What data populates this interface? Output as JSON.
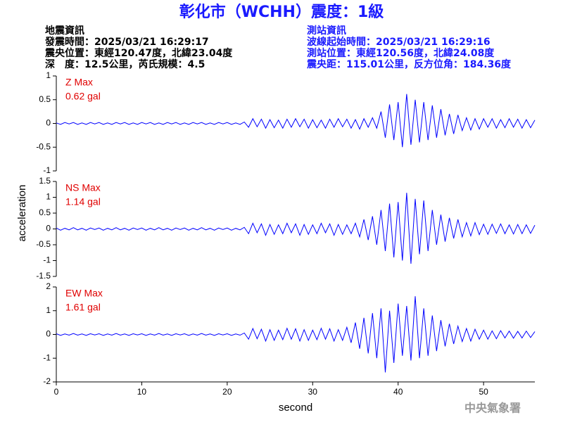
{
  "header": {
    "title": "彰化市（WCHH）震度：1級",
    "left": [
      "地震資訊",
      "發震時間：2025/03/21 16:29:17",
      "震央位置：東經120.47度，北緯23.04度",
      "深　度：12.5公里，芮氏規模：4.5"
    ],
    "right": [
      "測站資訊",
      "波線起始時間：2025/03/21 16:29:16",
      "測站位置：東經120.56度，北緯24.08度",
      "震央距：115.01公里，反方位角：184.36度"
    ]
  },
  "footer": "中央氣象署",
  "chart_data": [
    {
      "type": "line",
      "max_label": "Z Max",
      "max_value": "0.62 gal",
      "xlim": [
        0,
        56
      ],
      "ylim": [
        -1,
        1
      ],
      "yticks": [
        -1,
        -0.5,
        0,
        0.5,
        1
      ],
      "x": [
        0,
        0.5,
        1,
        1.5,
        2,
        2.5,
        3,
        3.5,
        4,
        4.5,
        5,
        5.5,
        6,
        6.5,
        7,
        7.5,
        8,
        8.5,
        9,
        9.5,
        10,
        10.5,
        11,
        11.5,
        12,
        12.5,
        13,
        13.5,
        14,
        14.5,
        15,
        15.5,
        16,
        16.5,
        17,
        17.5,
        18,
        18.5,
        19,
        19.5,
        20,
        20.5,
        21,
        21.5,
        22,
        22.5,
        23,
        23.5,
        24,
        24.5,
        25,
        25.5,
        26,
        26.5,
        27,
        27.5,
        28,
        28.5,
        29,
        29.5,
        30,
        30.5,
        31,
        31.5,
        32,
        32.5,
        33,
        33.5,
        34,
        34.5,
        35,
        35.5,
        36,
        36.5,
        37,
        37.5,
        38,
        38.5,
        39,
        39.5,
        40,
        40.5,
        41,
        41.5,
        42,
        42.5,
        43,
        43.5,
        44,
        44.5,
        45,
        45.5,
        46,
        46.5,
        47,
        47.5,
        48,
        48.5,
        49,
        49.5,
        50,
        50.5,
        51,
        51.5,
        52,
        52.5,
        53,
        53.5,
        54,
        54.5,
        55,
        55.5,
        56
      ],
      "series": [
        {
          "color": "#0000ff",
          "values": [
            0.01,
            -0.02,
            0.02,
            -0.01,
            0.02,
            -0.02,
            0.01,
            -0.02,
            0.02,
            -0.01,
            0.02,
            -0.02,
            0.01,
            -0.02,
            0.02,
            -0.01,
            0.02,
            -0.02,
            0.01,
            -0.02,
            0.02,
            -0.01,
            0.02,
            -0.02,
            0.01,
            -0.02,
            0.02,
            -0.01,
            0.02,
            -0.02,
            0.01,
            -0.02,
            0.02,
            -0.01,
            0.02,
            -0.02,
            0.01,
            -0.02,
            0.02,
            -0.01,
            0.02,
            -0.02,
            0.01,
            -0.02,
            0.03,
            -0.08,
            0.1,
            -0.07,
            0.09,
            -0.1,
            0.08,
            -0.09,
            0.07,
            -0.1,
            0.09,
            -0.08,
            0.1,
            -0.07,
            0.09,
            -0.1,
            0.08,
            -0.09,
            0.07,
            -0.1,
            0.09,
            -0.08,
            0.1,
            -0.07,
            0.09,
            -0.1,
            0.08,
            -0.12,
            0.1,
            -0.08,
            0.12,
            -0.1,
            0.25,
            -0.3,
            0.4,
            -0.35,
            0.45,
            -0.5,
            0.62,
            -0.45,
            0.5,
            -0.4,
            0.45,
            -0.35,
            0.38,
            -0.3,
            0.3,
            -0.25,
            0.2,
            -0.22,
            0.18,
            -0.15,
            0.12,
            -0.14,
            0.1,
            -0.12,
            0.1,
            -0.08,
            0.1,
            -0.1,
            0.08,
            -0.09,
            0.1,
            -0.08,
            0.09,
            -0.1,
            0.08,
            -0.09,
            0.07
          ]
        }
      ]
    },
    {
      "type": "line",
      "max_label": "NS Max",
      "max_value": "1.14 gal",
      "ylabel": "acceleration",
      "xlim": [
        0,
        56
      ],
      "ylim": [
        -1.5,
        1.5
      ],
      "yticks": [
        -1.5,
        -1,
        -0.5,
        0,
        0.5,
        1,
        1.5
      ],
      "x": [
        0,
        0.5,
        1,
        1.5,
        2,
        2.5,
        3,
        3.5,
        4,
        4.5,
        5,
        5.5,
        6,
        6.5,
        7,
        7.5,
        8,
        8.5,
        9,
        9.5,
        10,
        10.5,
        11,
        11.5,
        12,
        12.5,
        13,
        13.5,
        14,
        14.5,
        15,
        15.5,
        16,
        16.5,
        17,
        17.5,
        18,
        18.5,
        19,
        19.5,
        20,
        20.5,
        21,
        21.5,
        22,
        22.5,
        23,
        23.5,
        24,
        24.5,
        25,
        25.5,
        26,
        26.5,
        27,
        27.5,
        28,
        28.5,
        29,
        29.5,
        30,
        30.5,
        31,
        31.5,
        32,
        32.5,
        33,
        33.5,
        34,
        34.5,
        35,
        35.5,
        36,
        36.5,
        37,
        37.5,
        38,
        38.5,
        39,
        39.5,
        40,
        40.5,
        41,
        41.5,
        42,
        42.5,
        43,
        43.5,
        44,
        44.5,
        45,
        45.5,
        46,
        46.5,
        47,
        47.5,
        48,
        48.5,
        49,
        49.5,
        50,
        50.5,
        51,
        51.5,
        52,
        52.5,
        53,
        53.5,
        54,
        54.5,
        55,
        55.5,
        56
      ],
      "series": [
        {
          "color": "#0000ff",
          "values": [
            0.03,
            -0.04,
            0.02,
            -0.03,
            0.04,
            -0.03,
            0.02,
            -0.04,
            0.03,
            -0.02,
            0.03,
            -0.04,
            0.02,
            -0.03,
            0.04,
            -0.03,
            0.02,
            -0.04,
            0.03,
            -0.02,
            0.03,
            -0.04,
            0.02,
            -0.03,
            0.04,
            -0.03,
            0.02,
            -0.04,
            0.03,
            -0.02,
            0.03,
            -0.04,
            0.02,
            -0.03,
            0.04,
            -0.03,
            0.02,
            -0.04,
            0.03,
            -0.02,
            0.03,
            -0.04,
            0.02,
            -0.03,
            0.05,
            -0.15,
            0.18,
            -0.12,
            0.16,
            -0.2,
            0.14,
            -0.17,
            0.13,
            -0.15,
            0.18,
            -0.12,
            0.16,
            -0.2,
            0.14,
            -0.17,
            0.13,
            -0.15,
            0.18,
            -0.12,
            0.16,
            -0.2,
            0.14,
            -0.17,
            0.13,
            -0.15,
            0.18,
            -0.25,
            0.3,
            -0.35,
            0.4,
            -0.5,
            0.6,
            -0.7,
            0.8,
            -0.9,
            0.85,
            -1.0,
            1.14,
            -1.1,
            0.95,
            -0.8,
            0.9,
            -0.7,
            0.6,
            -0.5,
            0.45,
            -0.4,
            0.35,
            -0.3,
            0.3,
            -0.25,
            0.2,
            -0.22,
            0.2,
            -0.18,
            0.15,
            -0.17,
            0.15,
            -0.14,
            0.16,
            -0.15,
            0.13,
            -0.16,
            0.14,
            -0.15,
            0.13,
            -0.14,
            0.12
          ]
        }
      ]
    },
    {
      "type": "line",
      "max_label": "EW Max",
      "max_value": "1.61 gal",
      "xlabel": "second",
      "xlim": [
        0,
        56
      ],
      "xticks": [
        0,
        10,
        20,
        30,
        40,
        50
      ],
      "ylim": [
        -2,
        2
      ],
      "yticks": [
        -2,
        -1,
        0,
        1,
        2
      ],
      "x": [
        0,
        0.5,
        1,
        1.5,
        2,
        2.5,
        3,
        3.5,
        4,
        4.5,
        5,
        5.5,
        6,
        6.5,
        7,
        7.5,
        8,
        8.5,
        9,
        9.5,
        10,
        10.5,
        11,
        11.5,
        12,
        12.5,
        13,
        13.5,
        14,
        14.5,
        15,
        15.5,
        16,
        16.5,
        17,
        17.5,
        18,
        18.5,
        19,
        19.5,
        20,
        20.5,
        21,
        21.5,
        22,
        22.5,
        23,
        23.5,
        24,
        24.5,
        25,
        25.5,
        26,
        26.5,
        27,
        27.5,
        28,
        28.5,
        29,
        29.5,
        30,
        30.5,
        31,
        31.5,
        32,
        32.5,
        33,
        33.5,
        34,
        34.5,
        35,
        35.5,
        36,
        36.5,
        37,
        37.5,
        38,
        38.5,
        39,
        39.5,
        40,
        40.5,
        41,
        41.5,
        42,
        42.5,
        43,
        43.5,
        44,
        44.5,
        45,
        45.5,
        46,
        46.5,
        47,
        47.5,
        48,
        48.5,
        49,
        49.5,
        50,
        50.5,
        51,
        51.5,
        52,
        52.5,
        53,
        53.5,
        54,
        54.5,
        55,
        55.5,
        56
      ],
      "series": [
        {
          "color": "#0000ff",
          "values": [
            0.03,
            -0.04,
            0.02,
            -0.03,
            0.04,
            -0.03,
            0.02,
            -0.04,
            0.03,
            -0.02,
            0.03,
            -0.04,
            0.02,
            -0.03,
            0.04,
            -0.03,
            0.02,
            -0.04,
            0.03,
            -0.02,
            0.03,
            -0.04,
            0.02,
            -0.03,
            0.04,
            -0.03,
            0.02,
            -0.04,
            0.03,
            -0.02,
            0.03,
            -0.04,
            0.02,
            -0.03,
            0.04,
            -0.03,
            0.02,
            -0.04,
            0.03,
            -0.02,
            0.03,
            -0.04,
            0.02,
            -0.03,
            0.06,
            -0.2,
            0.25,
            -0.18,
            0.22,
            -0.28,
            0.2,
            -0.25,
            0.18,
            -0.22,
            0.26,
            -0.2,
            0.24,
            -0.28,
            0.2,
            -0.25,
            0.18,
            -0.22,
            0.26,
            -0.2,
            0.24,
            -0.28,
            0.2,
            -0.25,
            0.3,
            -0.35,
            0.5,
            -0.6,
            0.7,
            -0.8,
            0.9,
            -1.0,
            1.1,
            -1.6,
            1.0,
            -1.2,
            1.3,
            -0.9,
            1.2,
            -1.1,
            1.61,
            -1.0,
            1.1,
            -0.9,
            0.8,
            -0.7,
            0.6,
            -0.5,
            0.45,
            -0.4,
            0.35,
            -0.3,
            0.25,
            -0.28,
            0.22,
            -0.2,
            0.18,
            -0.2,
            0.15,
            -0.18,
            0.16,
            -0.15,
            0.14,
            -0.16,
            0.13,
            -0.15,
            0.14,
            -0.13,
            0.12
          ]
        }
      ]
    }
  ]
}
